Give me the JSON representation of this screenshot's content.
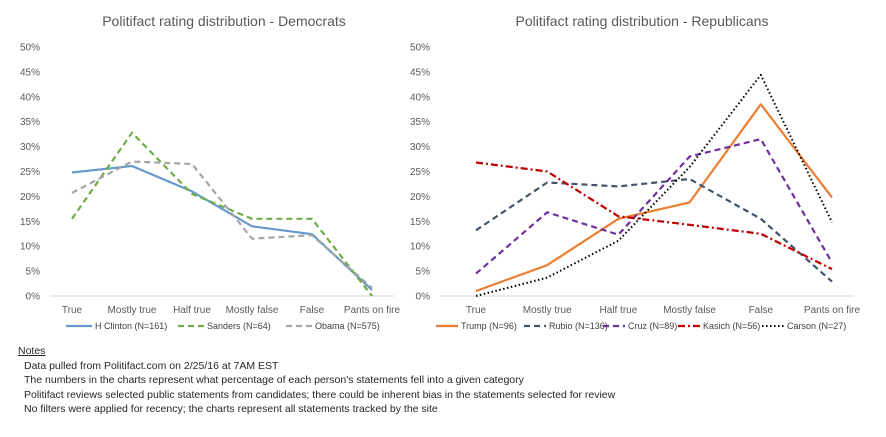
{
  "charts": [
    {
      "title": "Politifact rating distribution - Democrats",
      "legend": [
        {
          "label": "H Clinton (N=161)"
        },
        {
          "label": "Sanders (N=64)"
        },
        {
          "label": "Obama (N=575)"
        }
      ]
    },
    {
      "title": "Politifact rating distribution - Republicans",
      "legend": [
        {
          "label": "Trump (N=96)"
        },
        {
          "label": "Rubio (N=136)"
        },
        {
          "label": "Cruz (N=89)"
        },
        {
          "label": "Kasich (N=56)"
        },
        {
          "label": "Carson (N=27)"
        }
      ]
    }
  ],
  "chart_data": [
    {
      "type": "line",
      "title": "Politifact rating distribution - Democrats",
      "categories": [
        "True",
        "Mostly true",
        "Half true",
        "Mostly false",
        "False",
        "Pants on fire"
      ],
      "ylim": [
        0,
        50
      ],
      "yticks": [
        "0%",
        "5%",
        "10%",
        "15%",
        "20%",
        "25%",
        "30%",
        "35%",
        "40%",
        "45%",
        "50%"
      ],
      "grid": false,
      "legend_position": "bottom",
      "series": [
        {
          "name": "H Clinton (N=161)",
          "values": [
            24.8,
            26.1,
            21.0,
            14.0,
            12.4,
            1.2
          ],
          "color": "#6699cc",
          "dash": "solid"
        },
        {
          "name": "Sanders (N=64)",
          "values": [
            15.5,
            32.8,
            20.5,
            15.5,
            15.5,
            0.0
          ],
          "color": "#70ad47",
          "dash": "dash"
        },
        {
          "name": "Obama (N=575)",
          "values": [
            20.7,
            27.0,
            26.5,
            11.5,
            12.2,
            1.6
          ],
          "color": "#a5a5a5",
          "dash": "dash"
        }
      ]
    },
    {
      "type": "line",
      "title": "Politifact rating distribution - Republicans",
      "categories": [
        "True",
        "Mostly true",
        "Half true",
        "Mostly false",
        "False",
        "Pants on fire"
      ],
      "ylim": [
        0,
        50
      ],
      "yticks": [
        "0%",
        "5%",
        "10%",
        "15%",
        "20%",
        "25%",
        "30%",
        "35%",
        "40%",
        "45%",
        "50%"
      ],
      "grid": false,
      "legend_position": "bottom",
      "series": [
        {
          "name": "Trump (N=96)",
          "values": [
            1.0,
            6.2,
            15.5,
            18.8,
            38.5,
            19.8
          ],
          "color": "#ed7d31",
          "dash": "solid"
        },
        {
          "name": "Rubio (N=136)",
          "values": [
            13.2,
            22.8,
            22.0,
            23.5,
            15.5,
            2.9
          ],
          "color": "#44546a",
          "dash": "dash"
        },
        {
          "name": "Cruz (N=89)",
          "values": [
            4.5,
            16.8,
            12.3,
            28.0,
            31.5,
            6.7
          ],
          "color": "#7030a0",
          "dash": "dash"
        },
        {
          "name": "Kasich (N=56)",
          "values": [
            26.8,
            25.0,
            16.0,
            14.3,
            12.5,
            5.4
          ],
          "color": "#c00000",
          "dash": "dashdot"
        },
        {
          "name": "Carson (N=27)",
          "values": [
            0.0,
            3.7,
            11.1,
            25.9,
            44.4,
            14.8
          ],
          "color": "#000000",
          "dash": "dot"
        }
      ]
    }
  ],
  "notes": {
    "title": "Notes",
    "lines": [
      "Data pulled from Politifact.com on 2/25/16 at 7AM EST",
      "The numbers in the charts represent what percentage of each person's statements fell into a given category",
      "Politifact reviews selected public statements from candidates; there could be inherent bias in the statements selected for review",
      "No filters were applied for recency; the charts represent all statements tracked by the site"
    ]
  }
}
